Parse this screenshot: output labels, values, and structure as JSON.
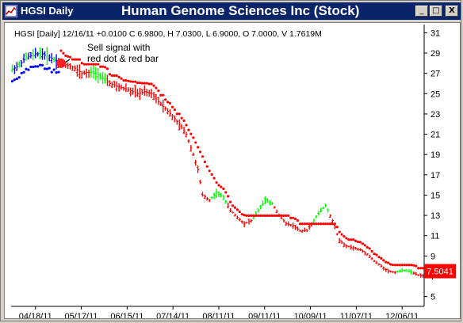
{
  "window": {
    "title": "HGSI Daily",
    "chart_title": "Human Genome Sciences Inc (Stock)",
    "buttons": [
      "_",
      "□",
      "X"
    ]
  },
  "header": {
    "info": "HGSI [Daily] 12/16/11  +0.0100 C 6.9800, H 7.0300, L 6.9000, O 7.0000, V 1.7619M"
  },
  "annotation": {
    "text_line1": "Sell signal with",
    "text_line2": "red dot & red bar"
  },
  "price_tag": {
    "label": "7.5041",
    "value": 7.5041,
    "color": "#ff0000"
  },
  "colors": {
    "up": "#00ff00",
    "down": "#ff0000",
    "buy_mode": "#0000ff",
    "dot_red": "#ff0000",
    "dot_blue": "#0000ff",
    "titlebar": "#0a246a"
  },
  "chart_data": {
    "type": "ohlc-bar",
    "title": "Human Genome Sciences Inc (Stock)",
    "xlabel": "",
    "ylabel": "",
    "ylim": [
      4.5,
      31.5
    ],
    "y_ticks": [
      5,
      7,
      9,
      11,
      13,
      15,
      17,
      19,
      21,
      23,
      25,
      27,
      29,
      31
    ],
    "x_tick_labels": [
      "04/18/11",
      "05/17/11",
      "06/15/11",
      "07/14/11",
      "08/11/11",
      "09/11/11",
      "10/09/11",
      "11/07/11",
      "12/06/11"
    ],
    "close_path": [
      [
        0,
        27.4
      ],
      [
        3,
        27.8
      ],
      [
        6,
        28.6
      ],
      [
        9,
        28.8
      ],
      [
        12,
        29.0
      ],
      [
        15,
        28.7
      ],
      [
        18,
        28.4
      ],
      [
        21,
        28.0
      ],
      [
        24,
        27.8
      ],
      [
        27,
        27.5
      ],
      [
        30,
        27.0
      ],
      [
        33,
        27.1
      ],
      [
        36,
        27.0
      ],
      [
        39,
        26.5
      ],
      [
        42,
        26.0
      ],
      [
        45,
        25.8
      ],
      [
        48,
        25.5
      ],
      [
        51,
        25.3
      ],
      [
        54,
        25.0
      ],
      [
        57,
        25.2
      ],
      [
        60,
        25.0
      ],
      [
        63,
        24.2
      ],
      [
        66,
        23.5
      ],
      [
        69,
        22.8
      ],
      [
        72,
        22.0
      ],
      [
        75,
        21.0
      ],
      [
        78,
        19.0
      ],
      [
        80,
        17.5
      ],
      [
        82,
        15.0
      ],
      [
        85,
        14.5
      ],
      [
        88,
        15.2
      ],
      [
        91,
        14.8
      ],
      [
        94,
        13.5
      ],
      [
        97,
        12.8
      ],
      [
        100,
        12.2
      ],
      [
        103,
        12.5
      ],
      [
        106,
        13.5
      ],
      [
        109,
        14.5
      ],
      [
        112,
        14.2
      ],
      [
        115,
        13.0
      ],
      [
        118,
        12.2
      ],
      [
        121,
        12.0
      ],
      [
        124,
        11.5
      ],
      [
        127,
        11.5
      ],
      [
        130,
        12.5
      ],
      [
        133,
        13.5
      ],
      [
        135,
        14.0
      ],
      [
        138,
        12.5
      ],
      [
        141,
        10.5
      ],
      [
        144,
        10.0
      ],
      [
        147,
        9.8
      ],
      [
        150,
        9.6
      ],
      [
        153,
        9.2
      ],
      [
        156,
        8.5
      ],
      [
        159,
        8.0
      ],
      [
        162,
        7.5
      ],
      [
        165,
        7.4
      ],
      [
        168,
        7.6
      ],
      [
        171,
        7.5
      ],
      [
        174,
        7.2
      ],
      [
        177,
        7.0
      ]
    ],
    "sell_signal_index": 21,
    "last_value": 7.5041,
    "last_close": 6.98,
    "grid": false
  }
}
